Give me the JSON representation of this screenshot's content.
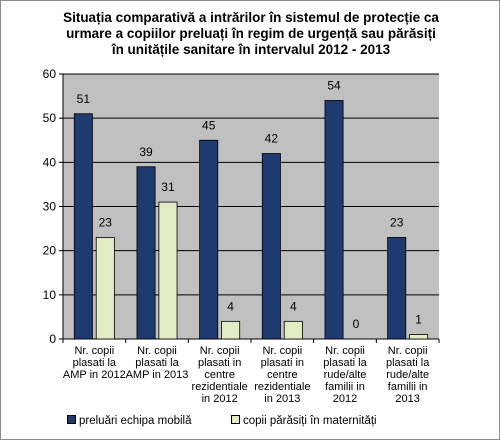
{
  "chart_data": {
    "type": "bar",
    "title_lines": [
      "Situația comparativă a intrărilor în sistemul de protecție ca",
      "urmare  a copiilor preluați în regim de urgență sau părăsiți",
      "în unitățile sanitare în intervalul 2012 - 2013"
    ],
    "categories": [
      [
        "Nr. copii",
        "plasati la",
        "AMP in 2012"
      ],
      [
        "Nr. copii",
        "plasati la",
        "AMP in 2013"
      ],
      [
        "Nr. copii",
        "plasati in",
        "centre",
        "rezidentiale",
        "in 2012"
      ],
      [
        "Nr. copii",
        "plasati in",
        "centre",
        "rezidentiale",
        "in 2013"
      ],
      [
        "Nr. copii",
        "plasati la",
        "rude/alte",
        "familii in",
        "2012"
      ],
      [
        "Nr. copii",
        "plasati la",
        "rude/alte",
        "familii in",
        "2013"
      ]
    ],
    "series": [
      {
        "name": "preluări echipa mobilă",
        "values": [
          51,
          39,
          45,
          42,
          54,
          23
        ],
        "color": "#1f3a6e"
      },
      {
        "name": "copii părăsiți în maternități",
        "values": [
          23,
          31,
          4,
          4,
          0,
          1
        ],
        "color": "#e2ecc4"
      }
    ],
    "ylim": [
      0,
      60
    ],
    "yticks": [
      0,
      10,
      20,
      30,
      40,
      50,
      60
    ],
    "grid": true,
    "legend_position": "bottom-left",
    "colors": {
      "plot_background": "#c0c0c0",
      "gridline": "#000000"
    }
  }
}
